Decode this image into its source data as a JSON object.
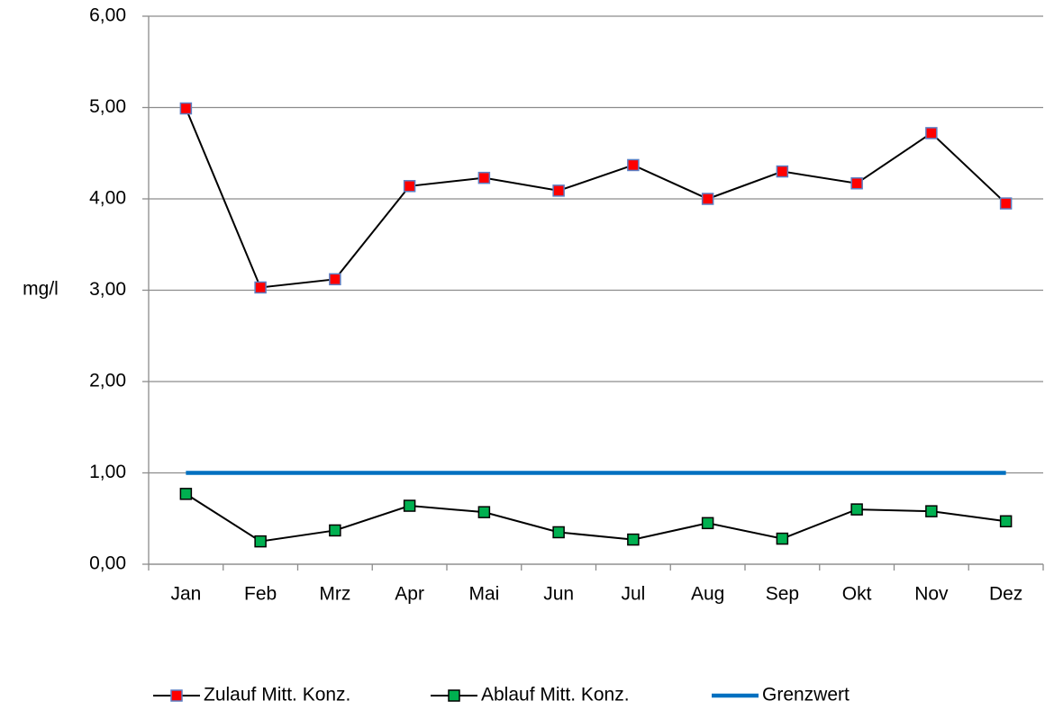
{
  "chart_data": {
    "type": "line",
    "y_label": "mg/l",
    "categories": [
      "Jan",
      "Feb",
      "Mrz",
      "Apr",
      "Mai",
      "Jun",
      "Jul",
      "Aug",
      "Sep",
      "Okt",
      "Nov",
      "Dez"
    ],
    "series": [
      {
        "name": "Zulauf Mitt. Konz.",
        "color": "#000000",
        "marker_color": "#ff0000",
        "marker_edge": "#5b7fc4",
        "values": [
          4.99,
          3.03,
          3.12,
          4.14,
          4.23,
          4.09,
          4.37,
          4.0,
          4.3,
          4.17,
          4.72,
          3.95
        ]
      },
      {
        "name": "Ablauf Mitt. Konz.",
        "color": "#000000",
        "marker_color": "#00b050",
        "marker_edge": "#000000",
        "values": [
          0.77,
          0.25,
          0.37,
          0.64,
          0.57,
          0.35,
          0.27,
          0.45,
          0.28,
          0.6,
          0.58,
          0.47
        ]
      },
      {
        "name": "Grenzwert",
        "color": "#0070c0",
        "values": [
          1,
          1,
          1,
          1,
          1,
          1,
          1,
          1,
          1,
          1,
          1,
          1
        ]
      }
    ],
    "ylim": [
      0,
      6
    ],
    "yticks": [
      {
        "value": 0,
        "label": "0,00"
      },
      {
        "value": 1,
        "label": "1,00"
      },
      {
        "value": 2,
        "label": "2,00"
      },
      {
        "value": 3,
        "label": "3,00"
      },
      {
        "value": 4,
        "label": "4,00"
      },
      {
        "value": 5,
        "label": "5,00"
      },
      {
        "value": 6,
        "label": "6,00"
      }
    ],
    "grid": true,
    "legend": "bottom"
  }
}
